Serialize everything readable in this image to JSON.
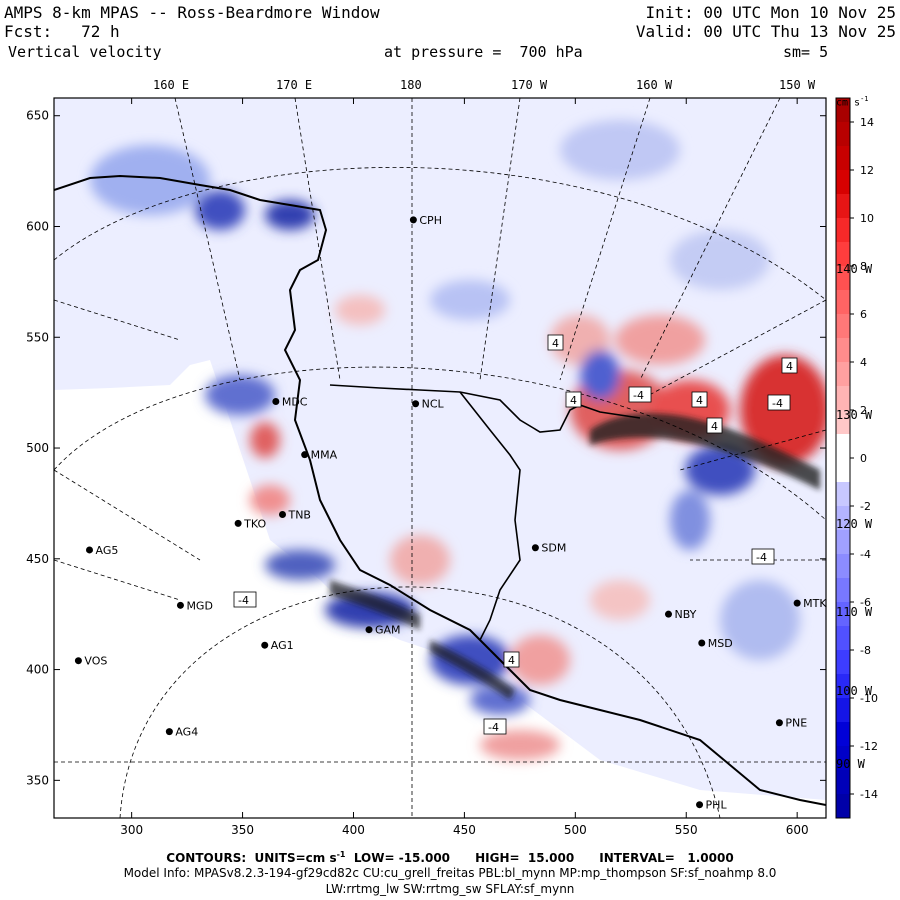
{
  "header": {
    "title": "AMPS 8-km MPAS -- Ross-Beardmore Window",
    "init": "Init: 00 UTC Mon 10 Nov 25",
    "fcst": "Fcst:   72 h",
    "valid": "Valid: 00 UTC Thu 13 Nov 25",
    "field": "Vertical velocity",
    "pressure": "at pressure =  700 hPa",
    "smoothing": "sm= 5"
  },
  "axes": {
    "x_ticks": [
      "300",
      "350",
      "400",
      "450",
      "500",
      "550",
      "600"
    ],
    "x_values": [
      300,
      350,
      400,
      450,
      500,
      550,
      600
    ],
    "x_range": [
      265,
      613
    ],
    "y_ticks": [
      "650",
      "600",
      "550",
      "500",
      "450",
      "400",
      "350"
    ],
    "y_values": [
      650,
      600,
      550,
      500,
      450,
      400,
      350
    ],
    "y_range": [
      333,
      658
    ],
    "lon_labels": [
      "160 E",
      "170 E",
      "180",
      "170 W",
      "160 W",
      "150 W"
    ],
    "right_lon_labels": [
      "140 W",
      "130 W",
      "120 W",
      "110 W",
      "100 W",
      "90 W"
    ]
  },
  "colorbar": {
    "unit": "cm s",
    "unit_exp": "-1",
    "ticks": [
      "14",
      "12",
      "10",
      "8",
      "6",
      "4",
      "2",
      "0",
      "-2",
      "-4",
      "-6",
      "-8",
      "-10",
      "-12",
      "-14"
    ],
    "values": [
      14,
      12,
      10,
      8,
      6,
      4,
      2,
      0,
      -2,
      -4,
      -6,
      -8,
      -10,
      -12,
      -14
    ],
    "min": -15,
    "max": 15,
    "neg_color": "#0000a0",
    "pos_color": "#a00000"
  },
  "stations": [
    {
      "name": "CPH",
      "x": 427,
      "y": 603
    },
    {
      "name": "MDC",
      "x": 365,
      "y": 521
    },
    {
      "name": "NCL",
      "x": 428,
      "y": 520
    },
    {
      "name": "MMA",
      "x": 378,
      "y": 497
    },
    {
      "name": "TNB",
      "x": 368,
      "y": 470
    },
    {
      "name": "TKO",
      "x": 348,
      "y": 466
    },
    {
      "name": "AG5",
      "x": 281,
      "y": 454
    },
    {
      "name": "SDM",
      "x": 482,
      "y": 455
    },
    {
      "name": "MGD",
      "x": 322,
      "y": 429
    },
    {
      "name": "NBY",
      "x": 542,
      "y": 425
    },
    {
      "name": "MTK",
      "x": 600,
      "y": 430
    },
    {
      "name": "GAM",
      "x": 407,
      "y": 418
    },
    {
      "name": "AG1",
      "x": 360,
      "y": 411
    },
    {
      "name": "MSD",
      "x": 557,
      "y": 412
    },
    {
      "name": "VOS",
      "x": 276,
      "y": 404
    },
    {
      "name": "AG4",
      "x": 317,
      "y": 372
    },
    {
      "name": "PNE",
      "x": 592,
      "y": 376
    },
    {
      "name": "PHL",
      "x": 556,
      "y": 339
    }
  ],
  "boxed_labels": [
    "4",
    "-4",
    "-4",
    "-4",
    "4",
    "4",
    "-4",
    "-4",
    "4",
    "4",
    "4"
  ],
  "footer": {
    "contours_prefix": "CONTOURS:  UNITS=cm s",
    "contours_exp": "-1",
    "contours_rest": "  LOW= -15.000      HIGH=  15.000      INTERVAL=   1.0000",
    "model_info": "Model Info: MPASv8.2.3-194-gf29cd82c CU:cu_grell_freitas PBL:bl_mynn MP:mp_thompson SF:sf_noahmp 8.0",
    "phys": "LW:rrtmg_lw SW:rrtmg_sw SFLAY:sf_mynn"
  }
}
